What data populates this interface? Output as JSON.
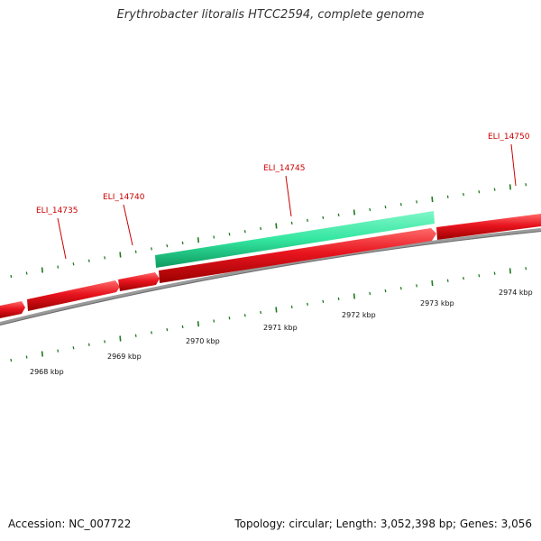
{
  "header": {
    "title": "Erythrobacter litoralis HTCC2594, complete genome"
  },
  "footer": {
    "accession": "Accession: NC_007722",
    "summary": "Topology: circular; Length: 3,052,398 bp; Genes: 3,056"
  },
  "colors": {
    "forward_gene": "#e8141e",
    "forward_gene_dark": "#a00000",
    "cds_highlight": "#33e6a0",
    "cds_highlight_dark": "#0a8a55",
    "backbone": "#888888",
    "tick": "#1e7a1e",
    "gene_label": "#cc0000"
  },
  "genes": [
    {
      "id": "ELI_14735",
      "label": "ELI_14735",
      "strand": "forward"
    },
    {
      "id": "ELI_14740",
      "label": "ELI_14740",
      "strand": "forward"
    },
    {
      "id": "ELI_14745",
      "label": "ELI_14745",
      "strand": "forward"
    },
    {
      "id": "ELI_14750",
      "label": "ELI_14750",
      "strand": "forward"
    }
  ],
  "scale_labels": [
    "2968 kbp",
    "2969 kbp",
    "2970 kbp",
    "2971 kbp",
    "2972 kbp",
    "2973 kbp",
    "2974 kbp"
  ]
}
